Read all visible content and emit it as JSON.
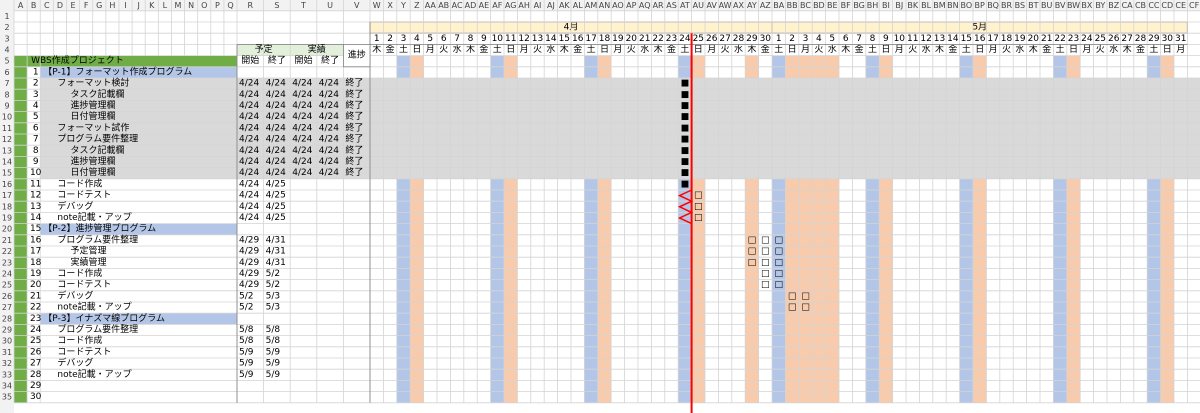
{
  "column_letters": [
    "A",
    "B",
    "C",
    "D",
    "E",
    "F",
    "G",
    "H",
    "I",
    "J",
    "K",
    "L",
    "M",
    "N",
    "O",
    "P",
    "Q",
    "R",
    "S",
    "T",
    "U",
    "V",
    "W",
    "X",
    "Y",
    "Z",
    "AA",
    "AB",
    "AC",
    "AD",
    "AE",
    "AF",
    "AG",
    "AH",
    "AI",
    "AJ",
    "AK",
    "AL",
    "AM",
    "AN",
    "AO",
    "AP",
    "AQ",
    "AR",
    "AS",
    "AT",
    "AU",
    "AV",
    "AW",
    "AX",
    "AY",
    "AZ",
    "BA",
    "BB",
    "BC",
    "BD",
    "BE",
    "BF",
    "BG",
    "BH",
    "BI",
    "BJ",
    "BK",
    "BL",
    "BM",
    "BN",
    "BO",
    "BP",
    "BQ",
    "BR",
    "BS",
    "BT",
    "BU",
    "BV",
    "BW",
    "BX",
    "BY",
    "BZ",
    "CA",
    "CB",
    "CC",
    "CD",
    "CE",
    "CF"
  ],
  "row_numbers": [
    1,
    2,
    3,
    4,
    5,
    6,
    7,
    8,
    9,
    10,
    11,
    12,
    13,
    14,
    15,
    16,
    17,
    18,
    19,
    20,
    21,
    22,
    23,
    24,
    25,
    26,
    27,
    28,
    29,
    30,
    31,
    32,
    33,
    34,
    35
  ],
  "table": {
    "project": "WBS作成プロジェクト",
    "plan": "予定",
    "actual": "実績",
    "progress": "進捗",
    "plan_start": "開始",
    "plan_end": "終了",
    "actual_start": "開始",
    "actual_end": "終了",
    "rows": [
      {
        "id": 1,
        "name": "【P-1】フォーマット作成プログラム",
        "level": 0,
        "group": true
      },
      {
        "id": 2,
        "name": "フォーマット検討",
        "level": 1,
        "plan_start": "4/24",
        "plan_end": "4/24",
        "actual_start": "4/24",
        "actual_end": "4/24",
        "progress": "終了",
        "marks": [
          {
            "month": "4月",
            "day": 24,
            "mark": "■"
          }
        ]
      },
      {
        "id": 3,
        "name": "タスク記載欄",
        "level": 2,
        "plan_start": "4/24",
        "plan_end": "4/24",
        "actual_start": "4/24",
        "actual_end": "4/24",
        "progress": "終了",
        "marks": [
          {
            "month": "4月",
            "day": 24,
            "mark": "■"
          }
        ]
      },
      {
        "id": 4,
        "name": "進捗管理欄",
        "level": 2,
        "plan_start": "4/24",
        "plan_end": "4/24",
        "actual_start": "4/24",
        "actual_end": "4/24",
        "progress": "終了",
        "marks": [
          {
            "month": "4月",
            "day": 24,
            "mark": "■"
          }
        ]
      },
      {
        "id": 5,
        "name": "日付管理欄",
        "level": 2,
        "plan_start": "4/24",
        "plan_end": "4/24",
        "actual_start": "4/24",
        "actual_end": "4/24",
        "progress": "終了",
        "marks": [
          {
            "month": "4月",
            "day": 24,
            "mark": "■"
          }
        ]
      },
      {
        "id": 6,
        "name": "フォーマット試作",
        "level": 1,
        "plan_start": "4/24",
        "plan_end": "4/24",
        "actual_start": "4/24",
        "actual_end": "4/24",
        "progress": "終了",
        "marks": [
          {
            "month": "4月",
            "day": 24,
            "mark": "■"
          }
        ]
      },
      {
        "id": 7,
        "name": "プログラム要件整理",
        "level": 1,
        "plan_start": "4/24",
        "plan_end": "4/24",
        "actual_start": "4/24",
        "actual_end": "4/24",
        "progress": "終了",
        "marks": [
          {
            "month": "4月",
            "day": 24,
            "mark": "■"
          }
        ]
      },
      {
        "id": 8,
        "name": "タスク記載欄",
        "level": 2,
        "plan_start": "4/24",
        "plan_end": "4/24",
        "actual_start": "4/24",
        "actual_end": "4/24",
        "progress": "終了",
        "marks": [
          {
            "month": "4月",
            "day": 24,
            "mark": "■"
          }
        ]
      },
      {
        "id": 9,
        "name": "進捗管理欄",
        "level": 2,
        "plan_start": "4/24",
        "plan_end": "4/24",
        "actual_start": "4/24",
        "actual_end": "4/24",
        "progress": "終了",
        "marks": [
          {
            "month": "4月",
            "day": 24,
            "mark": "■"
          }
        ]
      },
      {
        "id": 10,
        "name": "日付管理欄",
        "level": 2,
        "plan_start": "4/24",
        "plan_end": "4/24",
        "actual_start": "4/24",
        "actual_end": "4/24",
        "progress": "終了",
        "marks": [
          {
            "month": "4月",
            "day": 24,
            "mark": "■"
          }
        ]
      },
      {
        "id": 11,
        "name": "コード作成",
        "level": 1,
        "plan_start": "4/24",
        "plan_end": "4/25",
        "marks": [
          {
            "month": "4月",
            "day": 24,
            "mark": "■"
          }
        ]
      },
      {
        "id": 12,
        "name": "コードテスト",
        "level": 1,
        "plan_start": "4/24",
        "plan_end": "4/25",
        "marks": [
          {
            "month": "4月",
            "day": 25,
            "mark": "□"
          }
        ]
      },
      {
        "id": 13,
        "name": "デバッグ",
        "level": 1,
        "plan_start": "4/24",
        "plan_end": "4/25",
        "marks": [
          {
            "month": "4月",
            "day": 25,
            "mark": "□"
          }
        ]
      },
      {
        "id": 14,
        "name": "note記載・アップ",
        "level": 1,
        "plan_start": "4/24",
        "plan_end": "4/25",
        "marks": [
          {
            "month": "4月",
            "day": 25,
            "mark": "□"
          }
        ]
      },
      {
        "id": 15,
        "name": "【P-2】進捗管理プログラム",
        "level": 0,
        "group": true
      },
      {
        "id": 16,
        "name": "プログラム要件整理",
        "level": 1,
        "plan_start": "4/29",
        "plan_end": "4/31",
        "marks": [
          {
            "month": "4月",
            "day": 29,
            "mark": "□"
          },
          {
            "month": "4月",
            "day": 30,
            "mark": "□"
          },
          {
            "month": "5月",
            "day": 1,
            "mark": "□"
          }
        ]
      },
      {
        "id": 17,
        "name": "予定管理",
        "level": 2,
        "plan_start": "4/29",
        "plan_end": "4/31",
        "marks": [
          {
            "month": "4月",
            "day": 29,
            "mark": "□"
          },
          {
            "month": "4月",
            "day": 30,
            "mark": "□"
          },
          {
            "month": "5月",
            "day": 1,
            "mark": "□"
          }
        ]
      },
      {
        "id": 18,
        "name": "実績管理",
        "level": 2,
        "plan_start": "4/29",
        "plan_end": "4/31",
        "marks": [
          {
            "month": "4月",
            "day": 29,
            "mark": "□"
          },
          {
            "month": "4月",
            "day": 30,
            "mark": "□"
          },
          {
            "month": "5月",
            "day": 1,
            "mark": "□"
          }
        ]
      },
      {
        "id": 19,
        "name": "コード作成",
        "level": 1,
        "plan_start": "4/29",
        "plan_end": "5/2",
        "marks": [
          {
            "month": "4月",
            "day": 30,
            "mark": "□"
          },
          {
            "month": "5月",
            "day": 1,
            "mark": "□"
          }
        ]
      },
      {
        "id": 20,
        "name": "コードテスト",
        "level": 1,
        "plan_start": "4/29",
        "plan_end": "5/2",
        "marks": [
          {
            "month": "4月",
            "day": 30,
            "mark": "□"
          },
          {
            "month": "5月",
            "day": 1,
            "mark": "□"
          }
        ]
      },
      {
        "id": 21,
        "name": "デバッグ",
        "level": 1,
        "plan_start": "5/2",
        "plan_end": "5/3",
        "marks": [
          {
            "month": "5月",
            "day": 2,
            "mark": "□"
          },
          {
            "month": "5月",
            "day": 3,
            "mark": "□"
          }
        ]
      },
      {
        "id": 22,
        "name": "note記載・アップ",
        "level": 1,
        "plan_start": "5/2",
        "plan_end": "5/3",
        "marks": [
          {
            "month": "5月",
            "day": 2,
            "mark": "□"
          },
          {
            "month": "5月",
            "day": 3,
            "mark": "□"
          }
        ]
      },
      {
        "id": 23,
        "name": "【P-3】イナズマ線プログラム",
        "level": 0,
        "group": true
      },
      {
        "id": 24,
        "name": "プログラム要件整理",
        "level": 1,
        "plan_start": "5/8",
        "plan_end": "5/8"
      },
      {
        "id": 25,
        "name": "コード作成",
        "level": 1,
        "plan_start": "5/8",
        "plan_end": "5/8"
      },
      {
        "id": 26,
        "name": "コードテスト",
        "level": 1,
        "plan_start": "5/9",
        "plan_end": "5/9"
      },
      {
        "id": 27,
        "name": "デバッグ",
        "level": 1,
        "plan_start": "5/9",
        "plan_end": "5/9"
      },
      {
        "id": 28,
        "name": "note記載・アップ",
        "level": 1,
        "plan_start": "5/9",
        "plan_end": "5/9"
      },
      {
        "id": 29
      },
      {
        "id": 30
      }
    ]
  },
  "calendar": {
    "colors": {
      "土": "#b4c6e7",
      "日": "#f8cbad",
      "holiday": "#f8cbad"
    },
    "months": [
      {
        "label": "4月",
        "days": [
          {
            "d": 1,
            "w": "木"
          },
          {
            "d": 2,
            "w": "金"
          },
          {
            "d": 3,
            "w": "土"
          },
          {
            "d": 4,
            "w": "日"
          },
          {
            "d": 5,
            "w": "月"
          },
          {
            "d": 6,
            "w": "火"
          },
          {
            "d": 7,
            "w": "水"
          },
          {
            "d": 8,
            "w": "木"
          },
          {
            "d": 9,
            "w": "金"
          },
          {
            "d": 10,
            "w": "土"
          },
          {
            "d": 11,
            "w": "日"
          },
          {
            "d": 12,
            "w": "月"
          },
          {
            "d": 13,
            "w": "火"
          },
          {
            "d": 14,
            "w": "水"
          },
          {
            "d": 15,
            "w": "木"
          },
          {
            "d": 16,
            "w": "金"
          },
          {
            "d": 17,
            "w": "土"
          },
          {
            "d": 18,
            "w": "日"
          },
          {
            "d": 19,
            "w": "月"
          },
          {
            "d": 20,
            "w": "火"
          },
          {
            "d": 21,
            "w": "水"
          },
          {
            "d": 22,
            "w": "木"
          },
          {
            "d": 23,
            "w": "金"
          },
          {
            "d": 24,
            "w": "土"
          },
          {
            "d": 25,
            "w": "日"
          },
          {
            "d": 26,
            "w": "月"
          },
          {
            "d": 27,
            "w": "火"
          },
          {
            "d": 28,
            "w": "水"
          },
          {
            "d": 29,
            "w": "木",
            "holiday": true
          },
          {
            "d": 30,
            "w": "金"
          }
        ]
      },
      {
        "label": "5月",
        "days": [
          {
            "d": 1,
            "w": "土"
          },
          {
            "d": 2,
            "w": "日"
          },
          {
            "d": 3,
            "w": "月",
            "holiday": true
          },
          {
            "d": 4,
            "w": "火",
            "holiday": true
          },
          {
            "d": 5,
            "w": "水",
            "holiday": true
          },
          {
            "d": 6,
            "w": "木"
          },
          {
            "d": 7,
            "w": "金"
          },
          {
            "d": 8,
            "w": "土"
          },
          {
            "d": 9,
            "w": "日"
          },
          {
            "d": 10,
            "w": "月"
          },
          {
            "d": 11,
            "w": "火"
          },
          {
            "d": 12,
            "w": "水"
          },
          {
            "d": 13,
            "w": "木"
          },
          {
            "d": 14,
            "w": "金"
          },
          {
            "d": 15,
            "w": "土"
          },
          {
            "d": 16,
            "w": "日"
          },
          {
            "d": 17,
            "w": "月"
          },
          {
            "d": 18,
            "w": "火"
          },
          {
            "d": 19,
            "w": "水"
          },
          {
            "d": 20,
            "w": "木"
          },
          {
            "d": 21,
            "w": "金"
          },
          {
            "d": 22,
            "w": "土"
          },
          {
            "d": 23,
            "w": "日"
          },
          {
            "d": 24,
            "w": "月"
          },
          {
            "d": 25,
            "w": "火"
          },
          {
            "d": 26,
            "w": "水"
          },
          {
            "d": 27,
            "w": "木"
          },
          {
            "d": 28,
            "w": "金"
          },
          {
            "d": 29,
            "w": "土"
          },
          {
            "d": 30,
            "w": "日"
          },
          {
            "d": 31,
            "w": "月"
          }
        ]
      }
    ]
  }
}
